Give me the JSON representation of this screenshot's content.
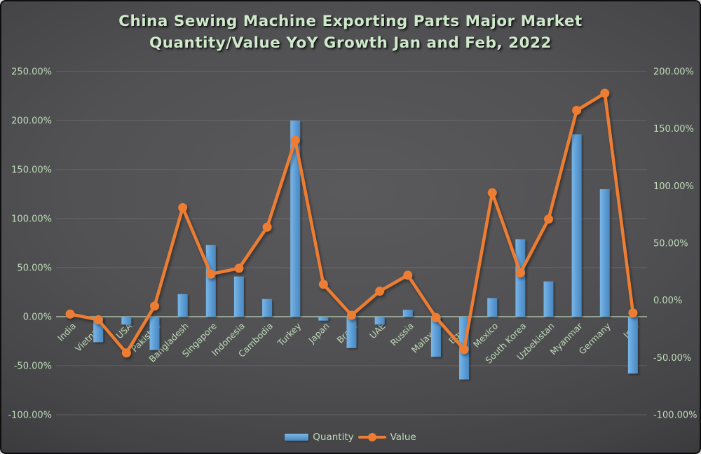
{
  "title": {
    "line1": "China Sewing Machine Exporting Parts Major Market",
    "line2": "Quantity/Value YoY Growth Jan and Feb, 2022"
  },
  "legend": {
    "quantity": "Quantity",
    "value": "Value"
  },
  "colors": {
    "bar": "#5B9BD5",
    "bar_light": "#7AB7E6",
    "bar_dark": "#4A87BD",
    "line": "#ED7D31",
    "text": "#BFDBB9",
    "title_text": "#CFE9CB",
    "grid": "#8A8A8A",
    "zero_line": "#AEC3AA"
  },
  "chart_data": {
    "type": "combo(bar+line)",
    "title": "China Sewing Machine Exporting Parts Major Market Quantity/Value YoY Growth Jan and Feb, 2022",
    "categories": [
      "India",
      "Vietnam",
      "USA",
      "Pakistan",
      "Bangladesh",
      "Singapore",
      "Indonesia",
      "Cambodia",
      "Turkey",
      "Japan",
      "Brazil",
      "UAE",
      "Russia",
      "Malaysia",
      "Egypt",
      "Mexico",
      "South Korea",
      "Uzbekistan",
      "Myanmar",
      "Germany",
      "Iran"
    ],
    "series": [
      {
        "name": "Quantity",
        "type": "bar",
        "axis": "left",
        "unit": "%",
        "values": [
          0,
          -26,
          -8,
          -34,
          23,
          73,
          41,
          18,
          200,
          -4,
          -32,
          -8,
          7,
          -41,
          -64,
          19,
          79,
          36,
          186,
          130,
          -58
        ]
      },
      {
        "name": "Value",
        "type": "line",
        "axis": "right",
        "unit": "%",
        "values": [
          -12,
          -17,
          -46,
          -5,
          81,
          23,
          28,
          64,
          140,
          14,
          -13,
          8,
          22,
          -15,
          -43,
          94,
          24,
          71,
          166,
          181,
          -11
        ]
      }
    ],
    "left_axis": {
      "min": -100,
      "max": 250,
      "step": 50,
      "tick_labels": [
        "250.00%",
        "200.00%",
        "150.00%",
        "100.00%",
        "50.00%",
        "0.00%",
        "-50.00%",
        "-100.00%"
      ]
    },
    "right_axis": {
      "min": -100,
      "max": 200,
      "step": 50,
      "tick_labels": [
        "200.00%",
        "150.00%",
        "100.00%",
        "50.00%",
        "0.00%",
        "-50.00%",
        "-100.00%"
      ]
    },
    "grid": true,
    "legend_position": "bottom"
  }
}
